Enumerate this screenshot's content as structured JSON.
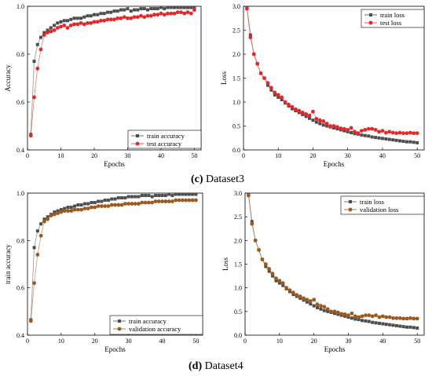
{
  "captions": [
    {
      "letter": "(c)",
      "text": "Dataset3"
    },
    {
      "letter": "(d)",
      "text": "Dataset4"
    }
  ],
  "chart_data": [
    {
      "type": "line",
      "id": "c-acc",
      "xlabel": "Epochs",
      "ylabel": "Accuracy",
      "xlim": [
        0,
        52
      ],
      "ylim": [
        0.4,
        1.0
      ],
      "xticks": [
        0,
        10,
        20,
        30,
        40,
        50
      ],
      "yticks": [
        0.4,
        0.6,
        0.8,
        1.0
      ],
      "yticklabels": [
        "0.4",
        "0.6",
        "0.8",
        "1.0"
      ],
      "legend": "bottom-right",
      "series": [
        {
          "name": "train accuracy",
          "color": "#4d4d4d",
          "marker": "square",
          "x": [
            1,
            2,
            3,
            4,
            5,
            6,
            7,
            8,
            9,
            10,
            11,
            12,
            13,
            14,
            15,
            16,
            17,
            18,
            19,
            20,
            21,
            22,
            23,
            24,
            25,
            26,
            27,
            28,
            29,
            30,
            31,
            32,
            33,
            34,
            35,
            36,
            37,
            38,
            39,
            40,
            41,
            42,
            43,
            44,
            45,
            46,
            47,
            48,
            49,
            50
          ],
          "values": [
            0.465,
            0.77,
            0.84,
            0.87,
            0.89,
            0.9,
            0.91,
            0.92,
            0.93,
            0.935,
            0.94,
            0.94,
            0.945,
            0.95,
            0.95,
            0.95,
            0.955,
            0.96,
            0.96,
            0.965,
            0.965,
            0.97,
            0.97,
            0.975,
            0.975,
            0.98,
            0.98,
            0.985,
            0.985,
            0.99,
            0.98,
            0.985,
            0.985,
            0.99,
            0.99,
            0.985,
            0.99,
            0.99,
            0.99,
            0.995,
            0.99,
            0.995,
            0.995,
            0.995,
            0.995,
            0.995,
            0.995,
            0.995,
            0.995,
            0.995
          ]
        },
        {
          "name": "test accuracy",
          "color": "#e8262a",
          "marker": "circle",
          "x": [
            1,
            2,
            3,
            4,
            5,
            6,
            7,
            8,
            9,
            10,
            11,
            12,
            13,
            14,
            15,
            16,
            17,
            18,
            19,
            20,
            21,
            22,
            23,
            24,
            25,
            26,
            27,
            28,
            29,
            30,
            31,
            32,
            33,
            34,
            35,
            36,
            37,
            38,
            39,
            40,
            41,
            42,
            43,
            44,
            45,
            46,
            47,
            48,
            49,
            50
          ],
          "values": [
            0.46,
            0.62,
            0.74,
            0.82,
            0.88,
            0.89,
            0.895,
            0.9,
            0.91,
            0.915,
            0.92,
            0.91,
            0.92,
            0.925,
            0.925,
            0.93,
            0.925,
            0.93,
            0.93,
            0.935,
            0.935,
            0.94,
            0.94,
            0.945,
            0.945,
            0.945,
            0.95,
            0.95,
            0.955,
            0.95,
            0.95,
            0.955,
            0.955,
            0.96,
            0.955,
            0.96,
            0.96,
            0.965,
            0.965,
            0.97,
            0.965,
            0.97,
            0.97,
            0.97,
            0.975,
            0.975,
            0.97,
            0.975,
            0.97,
            0.985
          ]
        }
      ]
    },
    {
      "type": "line",
      "id": "c-loss",
      "xlabel": "Epochs",
      "ylabel": "Loss",
      "xlim": [
        0,
        52
      ],
      "ylim": [
        0.0,
        3.0
      ],
      "xticks": [
        0,
        10,
        20,
        30,
        40,
        50
      ],
      "yticks": [
        0.0,
        0.5,
        1.0,
        1.5,
        2.0,
        2.5,
        3.0
      ],
      "yticklabels": [
        "0.0",
        "0.5",
        "1.0",
        "1.5",
        "2.0",
        "2.5",
        "3.0"
      ],
      "legend": "top-right",
      "series": [
        {
          "name": "train loss",
          "color": "#4d4d4d",
          "marker": "square",
          "x": [
            1,
            2,
            3,
            4,
            5,
            6,
            7,
            8,
            9,
            10,
            11,
            12,
            13,
            14,
            15,
            16,
            17,
            18,
            19,
            20,
            21,
            22,
            23,
            24,
            25,
            26,
            27,
            28,
            29,
            30,
            31,
            32,
            33,
            34,
            35,
            36,
            37,
            38,
            39,
            40,
            41,
            42,
            43,
            44,
            45,
            46,
            47,
            48,
            49,
            50
          ],
          "values": [
            3.0,
            2.4,
            2.0,
            1.8,
            1.6,
            1.5,
            1.35,
            1.25,
            1.15,
            1.1,
            1.05,
            0.98,
            0.92,
            0.86,
            0.82,
            0.78,
            0.74,
            0.7,
            0.66,
            0.62,
            0.58,
            0.55,
            0.52,
            0.5,
            0.48,
            0.46,
            0.44,
            0.42,
            0.4,
            0.38,
            0.36,
            0.34,
            0.33,
            0.31,
            0.3,
            0.29,
            0.27,
            0.26,
            0.25,
            0.24,
            0.23,
            0.22,
            0.21,
            0.2,
            0.19,
            0.18,
            0.17,
            0.17,
            0.16,
            0.15
          ]
        },
        {
          "name": "test loss",
          "color": "#e8262a",
          "marker": "circle",
          "x": [
            1,
            2,
            3,
            4,
            5,
            6,
            7,
            8,
            9,
            10,
            11,
            12,
            13,
            14,
            15,
            16,
            17,
            18,
            19,
            20,
            21,
            22,
            23,
            24,
            25,
            26,
            27,
            28,
            29,
            30,
            31,
            32,
            33,
            34,
            35,
            36,
            37,
            38,
            39,
            40,
            41,
            42,
            43,
            44,
            45,
            46,
            47,
            48,
            49,
            50
          ],
          "values": [
            2.95,
            2.35,
            2.0,
            1.8,
            1.6,
            1.5,
            1.4,
            1.3,
            1.2,
            1.15,
            1.1,
            1.0,
            0.95,
            0.9,
            0.85,
            0.82,
            0.78,
            0.75,
            0.72,
            0.8,
            0.65,
            0.62,
            0.6,
            0.55,
            0.5,
            0.5,
            0.48,
            0.45,
            0.44,
            0.42,
            0.46,
            0.38,
            0.35,
            0.4,
            0.42,
            0.44,
            0.44,
            0.42,
            0.38,
            0.4,
            0.36,
            0.38,
            0.36,
            0.35,
            0.36,
            0.35,
            0.35,
            0.36,
            0.35,
            0.35
          ]
        }
      ]
    },
    {
      "type": "line",
      "id": "d-acc",
      "xlabel": "Epochs",
      "ylabel": "train accuracy",
      "xlim": [
        0,
        52
      ],
      "ylim": [
        0.4,
        1.0
      ],
      "xticks": [
        0,
        10,
        20,
        30,
        40,
        50
      ],
      "yticks": [
        0.4,
        0.6,
        0.8,
        1.0
      ],
      "yticklabels": [
        "0.4",
        "0.6",
        "0.8",
        "1.0"
      ],
      "legend": "bottom-right",
      "series": [
        {
          "name": "train accuracy",
          "color": "#4d4d4d",
          "marker": "square",
          "x": [
            1,
            2,
            3,
            4,
            5,
            6,
            7,
            8,
            9,
            10,
            11,
            12,
            13,
            14,
            15,
            16,
            17,
            18,
            19,
            20,
            21,
            22,
            23,
            24,
            25,
            26,
            27,
            28,
            29,
            30,
            31,
            32,
            33,
            34,
            35,
            36,
            37,
            38,
            39,
            40,
            41,
            42,
            43,
            44,
            45,
            46,
            47,
            48,
            49,
            50
          ],
          "values": [
            0.465,
            0.77,
            0.84,
            0.87,
            0.89,
            0.9,
            0.91,
            0.92,
            0.925,
            0.93,
            0.935,
            0.94,
            0.94,
            0.945,
            0.95,
            0.95,
            0.955,
            0.955,
            0.96,
            0.96,
            0.965,
            0.965,
            0.97,
            0.97,
            0.975,
            0.975,
            0.98,
            0.98,
            0.98,
            0.985,
            0.985,
            0.985,
            0.985,
            0.99,
            0.99,
            0.99,
            0.985,
            0.99,
            0.99,
            0.99,
            0.99,
            0.995,
            0.99,
            0.995,
            0.995,
            0.995,
            0.995,
            0.995,
            0.995,
            0.995
          ]
        },
        {
          "name": "validation accuracy",
          "color": "#9c5a1f",
          "marker": "circle",
          "x": [
            1,
            2,
            3,
            4,
            5,
            6,
            7,
            8,
            9,
            10,
            11,
            12,
            13,
            14,
            15,
            16,
            17,
            18,
            19,
            20,
            21,
            22,
            23,
            24,
            25,
            26,
            27,
            28,
            29,
            30,
            31,
            32,
            33,
            34,
            35,
            36,
            37,
            38,
            39,
            40,
            41,
            42,
            43,
            44,
            45,
            46,
            47,
            48,
            49,
            50
          ],
          "values": [
            0.46,
            0.62,
            0.74,
            0.82,
            0.88,
            0.89,
            0.905,
            0.91,
            0.915,
            0.92,
            0.925,
            0.925,
            0.925,
            0.93,
            0.93,
            0.93,
            0.935,
            0.935,
            0.94,
            0.94,
            0.945,
            0.945,
            0.945,
            0.945,
            0.95,
            0.95,
            0.95,
            0.95,
            0.955,
            0.955,
            0.955,
            0.955,
            0.955,
            0.96,
            0.96,
            0.96,
            0.96,
            0.965,
            0.965,
            0.965,
            0.965,
            0.965,
            0.965,
            0.97,
            0.97,
            0.97,
            0.97,
            0.97,
            0.97,
            0.97
          ]
        }
      ]
    },
    {
      "type": "line",
      "id": "d-loss",
      "xlabel": "Epochs",
      "ylabel": "Loss",
      "xlim": [
        0,
        52
      ],
      "ylim": [
        0.0,
        3.0
      ],
      "xticks": [
        0,
        10,
        20,
        30,
        40,
        50
      ],
      "yticks": [
        0.0,
        0.5,
        1.0,
        1.5,
        2.0,
        2.5,
        3.0
      ],
      "yticklabels": [
        "0.0",
        "0.5",
        "1.0",
        "1.5",
        "2.0",
        "2.5",
        "3.0"
      ],
      "legend": "top-right",
      "series": [
        {
          "name": "train loss",
          "color": "#4d4d4d",
          "marker": "square",
          "x": [
            1,
            2,
            3,
            4,
            5,
            6,
            7,
            8,
            9,
            10,
            11,
            12,
            13,
            14,
            15,
            16,
            17,
            18,
            19,
            20,
            21,
            22,
            23,
            24,
            25,
            26,
            27,
            28,
            29,
            30,
            31,
            32,
            33,
            34,
            35,
            36,
            37,
            38,
            39,
            40,
            41,
            42,
            43,
            44,
            45,
            46,
            47,
            48,
            49,
            50
          ],
          "values": [
            3.0,
            2.4,
            2.0,
            1.8,
            1.6,
            1.45,
            1.35,
            1.25,
            1.15,
            1.1,
            1.05,
            0.98,
            0.92,
            0.86,
            0.82,
            0.78,
            0.74,
            0.7,
            0.66,
            0.62,
            0.58,
            0.55,
            0.52,
            0.5,
            0.48,
            0.46,
            0.44,
            0.42,
            0.4,
            0.38,
            0.36,
            0.34,
            0.33,
            0.31,
            0.3,
            0.29,
            0.27,
            0.26,
            0.25,
            0.24,
            0.23,
            0.22,
            0.21,
            0.2,
            0.19,
            0.18,
            0.17,
            0.17,
            0.16,
            0.15
          ]
        },
        {
          "name": "validation loss",
          "color": "#9c5a1f",
          "marker": "circle",
          "x": [
            1,
            2,
            3,
            4,
            5,
            6,
            7,
            8,
            9,
            10,
            11,
            12,
            13,
            14,
            15,
            16,
            17,
            18,
            19,
            20,
            21,
            22,
            23,
            24,
            25,
            26,
            27,
            28,
            29,
            30,
            31,
            32,
            33,
            34,
            35,
            36,
            37,
            38,
            39,
            40,
            41,
            42,
            43,
            44,
            45,
            46,
            47,
            48,
            49,
            50
          ],
          "values": [
            2.95,
            2.35,
            2.0,
            1.8,
            1.6,
            1.5,
            1.4,
            1.3,
            1.2,
            1.15,
            1.1,
            1.0,
            0.95,
            0.9,
            0.85,
            0.82,
            0.78,
            0.75,
            0.72,
            0.75,
            0.65,
            0.62,
            0.6,
            0.55,
            0.5,
            0.5,
            0.48,
            0.45,
            0.44,
            0.42,
            0.46,
            0.4,
            0.38,
            0.4,
            0.42,
            0.42,
            0.4,
            0.42,
            0.38,
            0.4,
            0.38,
            0.38,
            0.36,
            0.36,
            0.36,
            0.35,
            0.35,
            0.36,
            0.35,
            0.35
          ]
        }
      ]
    }
  ]
}
